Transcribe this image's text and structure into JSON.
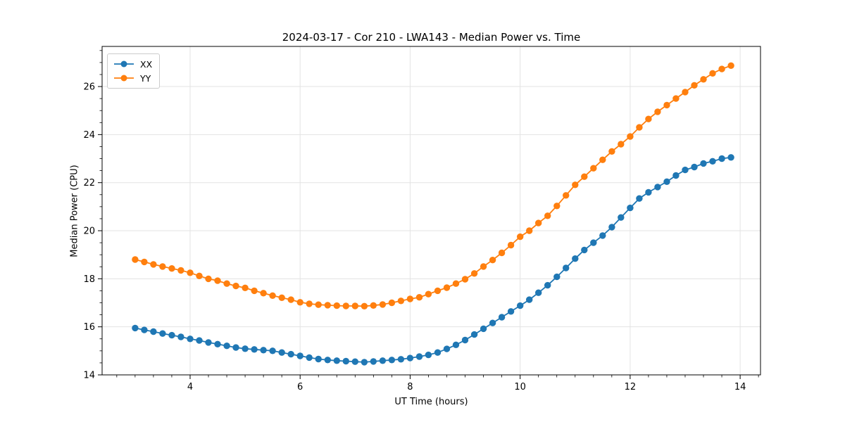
{
  "chart_data": {
    "type": "line",
    "title": "2024-03-17 - Cor 210 - LWA143 - Median Power vs. Time",
    "xlabel": "UT Time (hours)",
    "ylabel": "Median Power (CPU)",
    "xlim": [
      2.4,
      14.37
    ],
    "ylim": [
      14,
      27.67
    ],
    "x_major_ticks": [
      4,
      6,
      8,
      10,
      12,
      14
    ],
    "x_minor_step": 0.33333,
    "y_major_ticks": [
      14,
      16,
      18,
      20,
      22,
      24,
      26
    ],
    "y_minor_step": 0.5,
    "grid": true,
    "grid_color": "#e3e3e3",
    "spine_color": "#000000",
    "legend_position": "upper-left",
    "marker": "circle",
    "x": [
      3.0,
      3.167,
      3.333,
      3.5,
      3.667,
      3.833,
      4.0,
      4.167,
      4.333,
      4.5,
      4.667,
      4.833,
      5.0,
      5.167,
      5.333,
      5.5,
      5.667,
      5.833,
      6.0,
      6.167,
      6.333,
      6.5,
      6.667,
      6.833,
      7.0,
      7.167,
      7.333,
      7.5,
      7.667,
      7.833,
      8.0,
      8.167,
      8.333,
      8.5,
      8.667,
      8.833,
      9.0,
      9.167,
      9.333,
      9.5,
      9.667,
      9.833,
      10.0,
      10.167,
      10.333,
      10.5,
      10.667,
      10.833,
      11.0,
      11.167,
      11.333,
      11.5,
      11.667,
      11.833,
      12.0,
      12.167,
      12.333,
      12.5,
      12.667,
      12.833,
      13.0,
      13.167,
      13.333,
      13.5,
      13.667,
      13.833
    ],
    "series": [
      {
        "name": "XX",
        "color": "#1f77b4",
        "values": [
          15.95,
          15.87,
          15.8,
          15.72,
          15.65,
          15.58,
          15.5,
          15.43,
          15.35,
          15.28,
          15.21,
          15.14,
          15.09,
          15.06,
          15.03,
          15.0,
          14.93,
          14.86,
          14.79,
          14.72,
          14.66,
          14.62,
          14.59,
          14.57,
          14.55,
          14.53,
          14.56,
          14.59,
          14.62,
          14.65,
          14.7,
          14.76,
          14.83,
          14.93,
          15.08,
          15.25,
          15.45,
          15.68,
          15.92,
          16.16,
          16.4,
          16.64,
          16.88,
          17.13,
          17.42,
          17.73,
          18.08,
          18.45,
          18.84,
          19.2,
          19.5,
          19.8,
          20.15,
          20.55,
          20.95,
          21.34,
          21.6,
          21.82,
          22.04,
          22.3,
          22.53,
          22.65,
          22.8,
          22.89,
          23.0,
          23.05
        ]
      },
      {
        "name": "YY",
        "color": "#ff7f0e",
        "values": [
          18.8,
          18.7,
          18.6,
          18.51,
          18.43,
          18.35,
          18.25,
          18.12,
          18.0,
          17.92,
          17.8,
          17.7,
          17.62,
          17.5,
          17.4,
          17.3,
          17.21,
          17.13,
          17.02,
          16.96,
          16.92,
          16.9,
          16.88,
          16.87,
          16.87,
          16.86,
          16.89,
          16.93,
          17.0,
          17.08,
          17.16,
          17.23,
          17.36,
          17.5,
          17.63,
          17.8,
          17.98,
          18.22,
          18.51,
          18.78,
          19.08,
          19.4,
          19.75,
          20.0,
          20.32,
          20.62,
          21.03,
          21.47,
          21.91,
          22.25,
          22.6,
          22.95,
          23.3,
          23.6,
          23.92,
          24.3,
          24.65,
          24.95,
          25.23,
          25.5,
          25.77,
          26.05,
          26.3,
          26.55,
          26.73,
          26.87
        ]
      }
    ]
  }
}
